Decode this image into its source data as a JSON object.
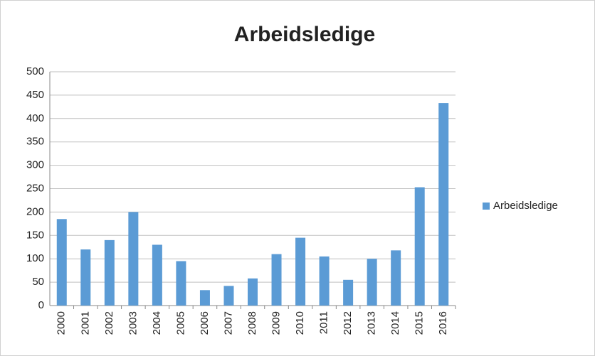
{
  "chart_data": {
    "type": "bar",
    "title": "Arbeidsledige",
    "categories": [
      "2000",
      "2001",
      "2002",
      "2003",
      "2004",
      "2005",
      "2006",
      "2007",
      "2008",
      "2009",
      "2010",
      "2011",
      "2012",
      "2013",
      "2014",
      "2015",
      "2016"
    ],
    "series": [
      {
        "name": "Arbeidsledige",
        "color": "#5b9bd5",
        "values": [
          185,
          120,
          140,
          200,
          130,
          95,
          33,
          42,
          58,
          110,
          145,
          105,
          55,
          100,
          118,
          253,
          433
        ]
      }
    ],
    "ylim": [
      0,
      500
    ],
    "yticks": [
      0,
      50,
      100,
      150,
      200,
      250,
      300,
      350,
      400,
      450,
      500
    ],
    "grid": true,
    "legend": "right"
  }
}
